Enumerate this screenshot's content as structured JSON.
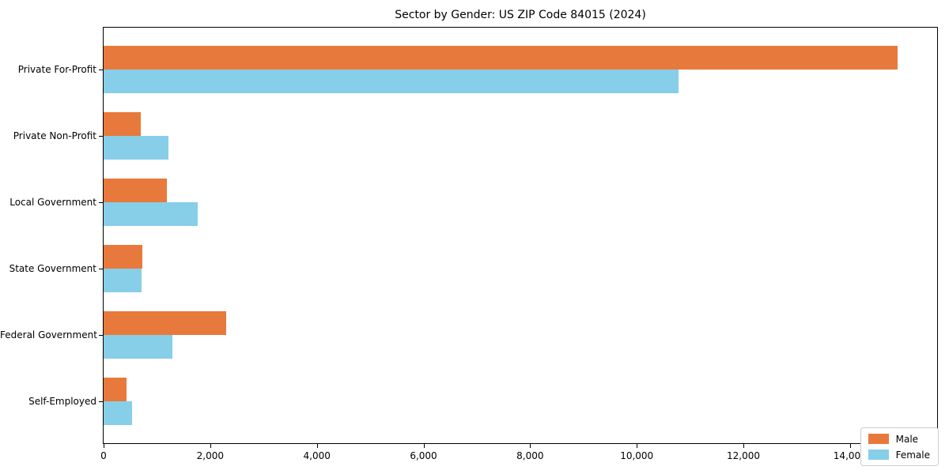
{
  "chart_data": {
    "type": "bar",
    "orientation": "horizontal",
    "title": "Sector by Gender: US ZIP Code 84015 (2024)",
    "categories": [
      "Private For-Profit",
      "Private Non-Profit",
      "Local Government",
      "State Government",
      "Federal Government",
      "Self-Employed"
    ],
    "series": [
      {
        "name": "Male",
        "color": "#e8793c",
        "values": [
          14890,
          700,
          1190,
          720,
          2300,
          430
        ]
      },
      {
        "name": "Female",
        "color": "#87cee8",
        "values": [
          10780,
          1220,
          1770,
          710,
          1290,
          540
        ]
      }
    ],
    "xlim": [
      0,
      15634
    ],
    "xticks": [
      0,
      2000,
      4000,
      6000,
      8000,
      10000,
      12000,
      14000
    ],
    "xtick_labels": [
      "0",
      "2,000",
      "4,000",
      "6,000",
      "8,000",
      "10,000",
      "12,000",
      "14,000"
    ],
    "legend_position": "lower right",
    "grid": false,
    "xlabel": "",
    "ylabel": ""
  }
}
